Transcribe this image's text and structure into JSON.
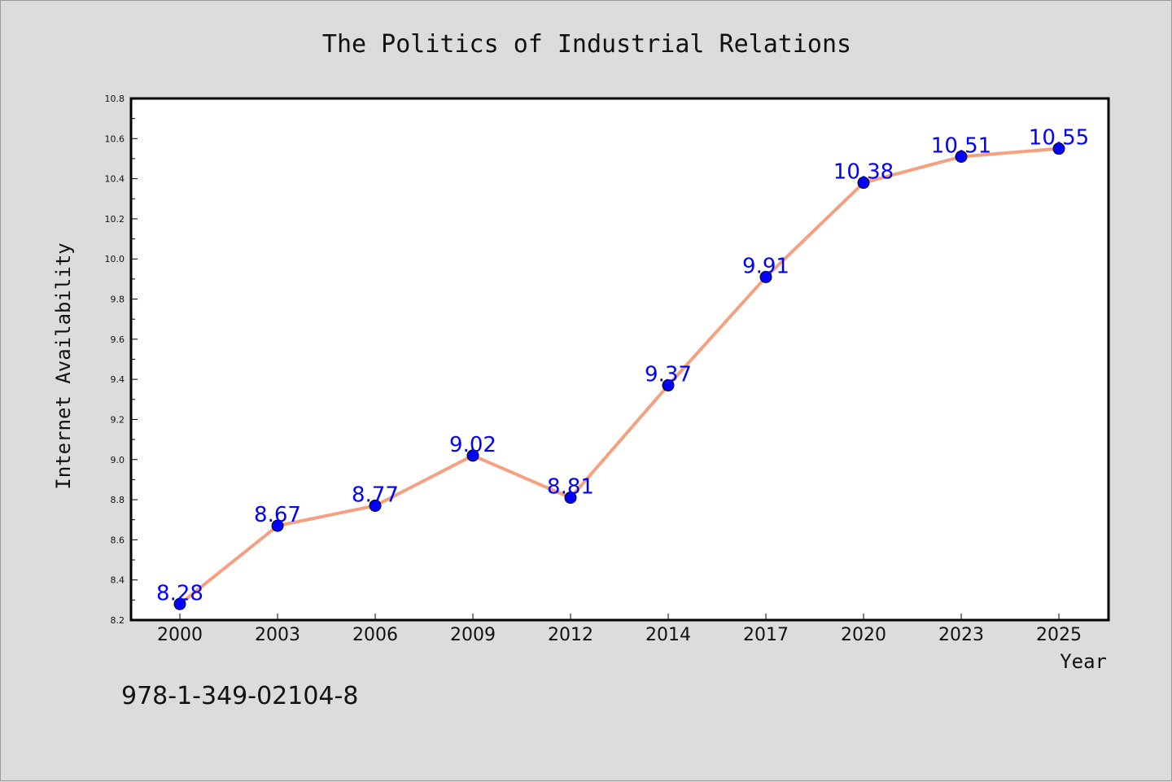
{
  "chart_data": {
    "type": "line",
    "title": "The Politics of Industrial Relations",
    "xlabel": "Year",
    "ylabel": "Internet Availability",
    "categories": [
      "2000",
      "2003",
      "2006",
      "2009",
      "2012",
      "2014",
      "2017",
      "2020",
      "2023",
      "2025"
    ],
    "series": [
      {
        "values": [
          8.28,
          8.67,
          8.77,
          9.02,
          8.81,
          9.37,
          9.91,
          10.38,
          10.51,
          10.55
        ],
        "line_color": "#f4a081",
        "marker_color": "#0000ff"
      }
    ],
    "ylim": [
      8.2,
      10.8
    ],
    "yticks": [
      "8.2",
      "8.4",
      "8.6",
      "8.8",
      "9.0",
      "9.2",
      "9.4",
      "9.6",
      "9.8",
      "10.0",
      "10.2",
      "10.4",
      "10.6",
      "10.8"
    ],
    "grid": false,
    "legend": "none",
    "data_labels": true
  },
  "annotation": "978-1-349-02104-8",
  "colors": {
    "background": "#dcdcdc",
    "plot_background": "#ffffff",
    "label_color": "#0000ff"
  }
}
